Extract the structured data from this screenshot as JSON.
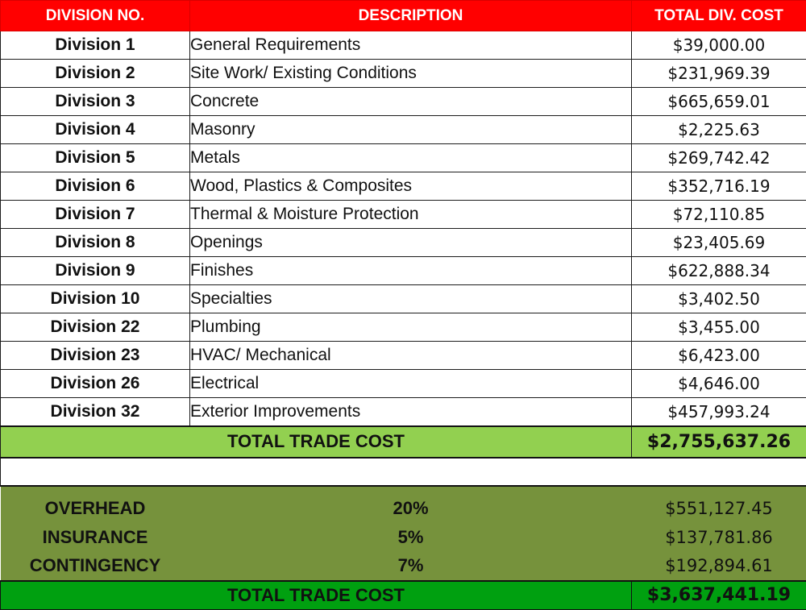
{
  "header": {
    "division_no": "DIVISION NO.",
    "description": "DESCRIPTION",
    "total_div_cost": "TOTAL DIV. COST"
  },
  "divisions": [
    {
      "division": "Division 1",
      "description": "General Requirements",
      "cost": "$39,000.00"
    },
    {
      "division": "Division 2",
      "description": "Site Work/ Existing Conditions",
      "cost": "$231,969.39"
    },
    {
      "division": "Division 3",
      "description": "Concrete",
      "cost": "$665,659.01"
    },
    {
      "division": "Division 4",
      "description": "Masonry",
      "cost": "$2,225.63"
    },
    {
      "division": "Division 5",
      "description": "Metals",
      "cost": "$269,742.42"
    },
    {
      "division": "Division 6",
      "description": "Wood, Plastics & Composites",
      "cost": "$352,716.19"
    },
    {
      "division": "Division 7",
      "description": "Thermal & Moisture Protection",
      "cost": "$72,110.85"
    },
    {
      "division": "Division 8",
      "description": "Openings",
      "cost": "$23,405.69"
    },
    {
      "division": "Division 9",
      "description": "Finishes",
      "cost": "$622,888.34"
    },
    {
      "division": "Division 10",
      "description": "Specialties",
      "cost": "$3,402.50"
    },
    {
      "division": "Division 22",
      "description": "Plumbing",
      "cost": "$3,455.00"
    },
    {
      "division": "Division 23",
      "description": "HVAC/ Mechanical",
      "cost": "$6,423.00"
    },
    {
      "division": "Division 26",
      "description": "Electrical",
      "cost": "$4,646.00"
    },
    {
      "division": "Division 32",
      "description": "Exterior Improvements",
      "cost": "$457,993.24"
    }
  ],
  "subtotal": {
    "label": "TOTAL TRADE COST",
    "amount": "$2,755,637.26"
  },
  "markups": [
    {
      "label": "OVERHEAD",
      "percent": "20%",
      "amount": "$551,127.45"
    },
    {
      "label": "INSURANCE",
      "percent": "5%",
      "amount": "$137,781.86"
    },
    {
      "label": "CONTINGENCY",
      "percent": "7%",
      "amount": "$192,894.61"
    }
  ],
  "grand_total": {
    "label": "TOTAL TRADE COST",
    "amount": "$3,637,441.19"
  },
  "colors": {
    "header": "#ff0000",
    "subtotal": "#92d050",
    "markup": "#76923c",
    "grand_total": "#00a010"
  }
}
